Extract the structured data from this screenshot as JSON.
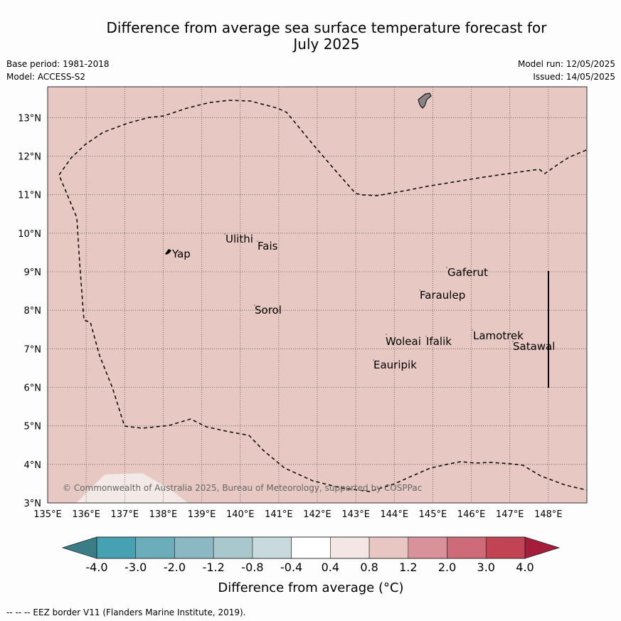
{
  "title": {
    "line1": "Difference from average sea surface temperature forecast for",
    "line2": "July 2025"
  },
  "meta": {
    "base_period": "Base period: 1981-2018",
    "model": "Model: ACCESS-S2",
    "model_run": "Model run: 12/05/2025",
    "issued": "Issued: 14/05/2025"
  },
  "axes": {
    "lon_ticks": [
      "135°E",
      "136°E",
      "137°E",
      "138°E",
      "139°E",
      "140°E",
      "141°E",
      "142°E",
      "143°E",
      "144°E",
      "145°E",
      "146°E",
      "147°E",
      "148°E"
    ],
    "lat_ticks": [
      "3°N",
      "4°N",
      "5°N",
      "6°N",
      "7°N",
      "8°N",
      "9°N",
      "10°N",
      "11°N",
      "12°N",
      "13°N"
    ],
    "lon_range": [
      135,
      149
    ],
    "lat_range": [
      3,
      13.8
    ]
  },
  "places": {
    "yap": "Yap",
    "ulithi": "Ulithi",
    "fais": "Fais",
    "gaferut": "Gaferut",
    "faraulep": "Faraulep",
    "sorol": "Sorol",
    "lamotrek": "Lamotrek",
    "woleai": "Woleai",
    "ifalik": "Ifalik",
    "satawal": "Satawal",
    "eauripik": "Eauripik"
  },
  "copyright": "© Commonwealth of Australia 2025, Bureau of Meteorology, supported by COSPPac",
  "colorbar": {
    "labels": [
      "-4.0",
      "-3.0",
      "-2.0",
      "-1.2",
      "-0.8",
      "-0.4",
      "0.4",
      "0.8",
      "1.2",
      "2.0",
      "3.0",
      "4.0"
    ],
    "colors": [
      "#46a2b3",
      "#6cadbb",
      "#8bb8c2",
      "#a9c8ce",
      "#c8dade",
      "#ffffff",
      "#f3e6e5",
      "#e8c7c2",
      "#d9919a",
      "#cd6b78",
      "#c14354"
    ],
    "under_color": "#3a7d87",
    "over_color": "#a61d3c",
    "title": "Difference from average (°C)"
  },
  "map_fill_color": "#e8c8c2",
  "footnote": "--  --  -- EEZ border V11 (Flanders Marine Institute, 2019)."
}
